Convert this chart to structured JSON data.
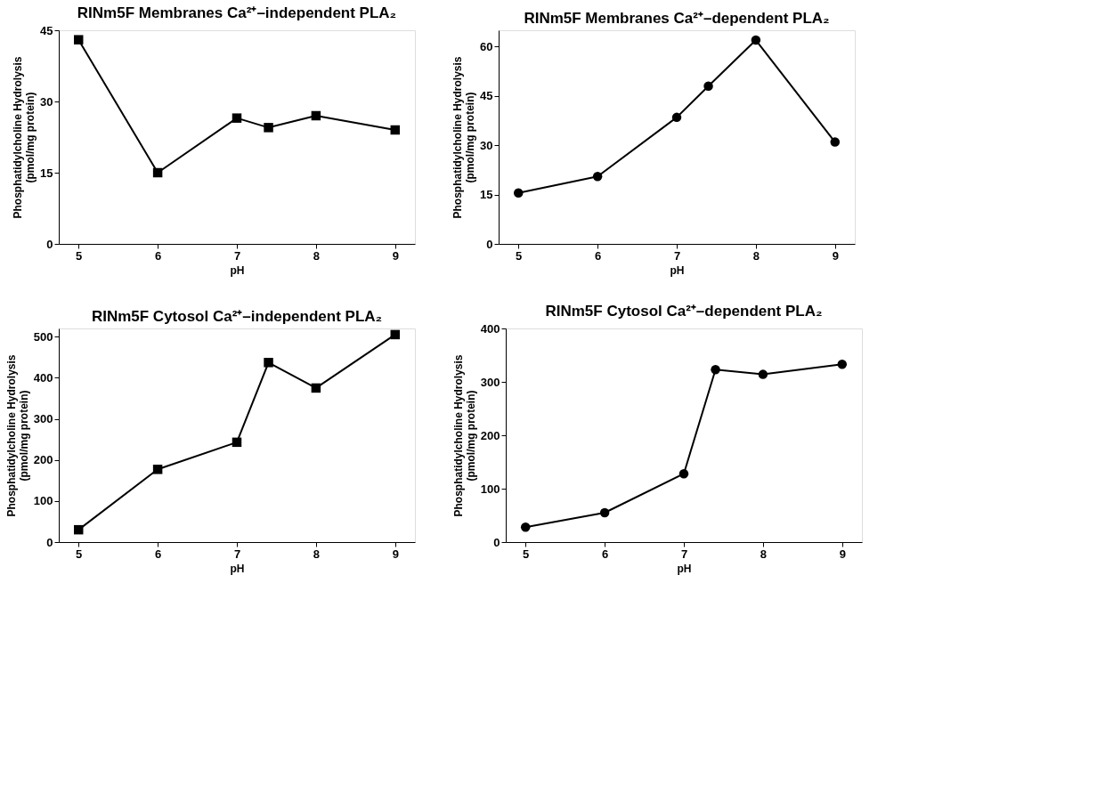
{
  "chart_data": [
    {
      "type": "line",
      "title": "RINm5F Membranes Ca²⁺–independent PLA₂",
      "xlabel": "pH",
      "ylabel": "Phosphatidylcholine Hydrolysis\n(pmol/mg protein)",
      "x": [
        5,
        6,
        7,
        7.4,
        8,
        9
      ],
      "series": [
        {
          "color": "#000000",
          "values": [
            43,
            15,
            26.5,
            24.5,
            27,
            24
          ]
        }
      ],
      "xlim": [
        4.75,
        9.25
      ],
      "xticks": [
        5,
        6,
        7,
        8,
        9
      ],
      "ylim": [
        0,
        45
      ],
      "yticks": [
        0,
        15,
        30,
        45
      ],
      "grid": false,
      "marker": "square",
      "line_style": "solid"
    },
    {
      "type": "line",
      "title": "RINm5F Membranes Ca²⁺–dependent PLA₂",
      "xlabel": "pH",
      "ylabel": "Phosphatidylcholine Hydrolysis\n(pmol/mg protein)",
      "x": [
        5,
        6,
        7,
        7.4,
        8,
        9
      ],
      "series": [
        {
          "color": "#000000",
          "values": [
            15.5,
            20.5,
            38.5,
            48,
            62,
            31
          ]
        }
      ],
      "xlim": [
        4.75,
        9.25
      ],
      "xticks": [
        5,
        6,
        7,
        8,
        9
      ],
      "ylim": [
        0,
        65
      ],
      "yticks": [
        0,
        15,
        30,
        45,
        60
      ],
      "grid": false,
      "marker": "circle",
      "line_style": "solid"
    },
    {
      "type": "line",
      "title": "RINm5F Cytosol Ca²⁺–independent PLA₂",
      "xlabel": "pH",
      "ylabel": "Phosphatidylcholine Hydrolysis\n(pmol/mg protein)",
      "x": [
        5,
        6,
        7,
        7.4,
        8,
        9
      ],
      "series": [
        {
          "color": "#000000",
          "values": [
            30,
            177,
            243,
            437,
            375,
            505
          ]
        }
      ],
      "xlim": [
        4.75,
        9.25
      ],
      "xticks": [
        5,
        6,
        7,
        8,
        9
      ],
      "ylim": [
        0,
        520
      ],
      "yticks": [
        0,
        100,
        200,
        300,
        400,
        500
      ],
      "grid": false,
      "marker": "square",
      "line_style": "solid"
    },
    {
      "type": "line",
      "title": "RINm5F Cytosol Ca²⁺–dependent PLA₂",
      "xlabel": "pH",
      "ylabel": "Phosphatidylcholine Hydrolysis\n(pmol/mg protein)",
      "x": [
        5,
        6,
        7,
        7.4,
        8,
        9
      ],
      "series": [
        {
          "color": "#000000",
          "values": [
            28,
            55,
            128,
            323,
            314,
            333
          ]
        }
      ],
      "xlim": [
        4.75,
        9.25
      ],
      "xticks": [
        5,
        6,
        7,
        8,
        9
      ],
      "ylim": [
        0,
        400
      ],
      "yticks": [
        0,
        100,
        200,
        300,
        400
      ],
      "grid": false,
      "marker": "circle",
      "line_style": "solid"
    }
  ]
}
